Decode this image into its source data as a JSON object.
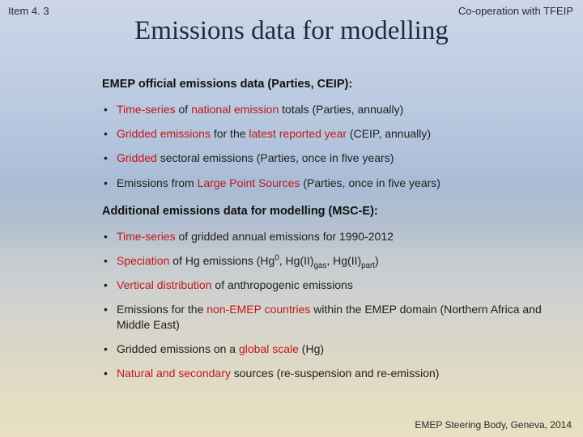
{
  "header": {
    "left": "Item 4. 3",
    "right": "Co-operation with TFEIP"
  },
  "title": "Emissions data for modelling",
  "sections": [
    {
      "heading": "EMEP official emissions data (Parties, CEIP):",
      "bullets": [
        [
          [
            "Time-series",
            "red"
          ],
          [
            " of ",
            ""
          ],
          [
            "national emission",
            "red"
          ],
          [
            " totals (Parties, annually)",
            ""
          ]
        ],
        [
          [
            "Gridded emissions",
            "red"
          ],
          [
            " for the ",
            ""
          ],
          [
            "latest reported year",
            "red"
          ],
          [
            " (CEIP, annually)",
            ""
          ]
        ],
        [
          [
            "Gridded",
            "red"
          ],
          [
            " sectoral emissions (Parties, once in five years)",
            ""
          ]
        ],
        [
          [
            "Emissions from ",
            ""
          ],
          [
            "Large Point Sources",
            "red"
          ],
          [
            " (Parties, once in five years)",
            ""
          ]
        ]
      ]
    },
    {
      "heading": "Additional emissions data for modelling (MSC-E):",
      "bullets": [
        [
          [
            "Time-series",
            "red"
          ],
          [
            " of gridded annual emissions for 1990-2012",
            ""
          ]
        ],
        [
          [
            "Speciation",
            "red"
          ],
          [
            " of Hg emissions (Hg",
            ""
          ],
          [
            "0",
            "sup"
          ],
          [
            ", Hg(II)",
            ""
          ],
          [
            "gas",
            "sub"
          ],
          [
            ", Hg(II)",
            ""
          ],
          [
            "part",
            "sub"
          ],
          [
            ")",
            ""
          ]
        ],
        [
          [
            "Vertical distribution",
            "red"
          ],
          [
            " of anthropogenic emissions",
            ""
          ]
        ],
        [
          [
            "Emissions for the ",
            ""
          ],
          [
            "non-EMEP countries",
            "red"
          ],
          [
            " within the EMEP domain (Northern Africa and Middle East)",
            ""
          ]
        ],
        [
          [
            "Gridded emissions on a ",
            ""
          ],
          [
            "global scale",
            "red"
          ],
          [
            " (Hg)",
            ""
          ]
        ],
        [
          [
            "Natural and secondary",
            "red"
          ],
          [
            " sources (re-suspension and re-emission)",
            ""
          ]
        ]
      ]
    }
  ],
  "footer": "EMEP Steering Body, Geneva, 2014",
  "colors": {
    "red": "#c01818",
    "title": "#1f2a42",
    "text": "#202020"
  }
}
